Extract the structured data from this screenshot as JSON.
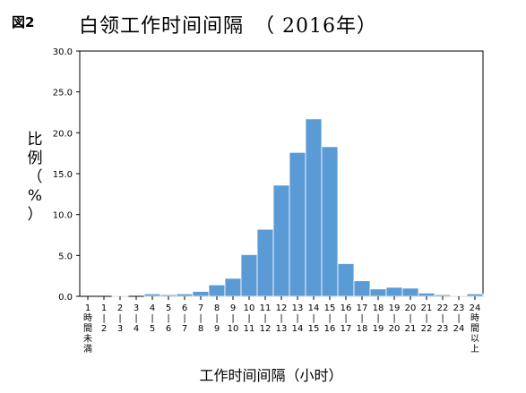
{
  "figure_label": "図2",
  "title": "白领工作时间间隔　（ 2016年）",
  "chart_data": {
    "type": "bar",
    "ylabel": [
      "比",
      "例",
      "（",
      "%",
      "）"
    ],
    "xlabel": "工作时间间隔（小时）",
    "ylim": [
      0,
      30
    ],
    "yticks": [
      "0.0",
      "5.0",
      "10.0",
      "15.0",
      "20.0",
      "25.0",
      "30.0"
    ],
    "categories": [
      [
        "1",
        "時",
        "間",
        "未",
        "満"
      ],
      [
        "1",
        "|",
        "2"
      ],
      [
        "2",
        "|",
        "3"
      ],
      [
        "3",
        "|",
        "4"
      ],
      [
        "4",
        "|",
        "5"
      ],
      [
        "5",
        "|",
        "6"
      ],
      [
        "6",
        "|",
        "7"
      ],
      [
        "7",
        "|",
        "8"
      ],
      [
        "8",
        "|",
        "9"
      ],
      [
        "9",
        "|",
        "10"
      ],
      [
        "10",
        "|",
        "11"
      ],
      [
        "11",
        "|",
        "12"
      ],
      [
        "12",
        "|",
        "13"
      ],
      [
        "13",
        "|",
        "14"
      ],
      [
        "14",
        "|",
        "15"
      ],
      [
        "15",
        "|",
        "16"
      ],
      [
        "16",
        "|",
        "17"
      ],
      [
        "17",
        "|",
        "18"
      ],
      [
        "18",
        "|",
        "19"
      ],
      [
        "19",
        "|",
        "20"
      ],
      [
        "20",
        "|",
        "21"
      ],
      [
        "21",
        "|",
        "22"
      ],
      [
        "22",
        "|",
        "23"
      ],
      [
        "23",
        "|",
        "24"
      ],
      [
        "24",
        "時",
        "間",
        "以",
        "上"
      ]
    ],
    "values": [
      0.0,
      0.0,
      0.1,
      0.0,
      0.3,
      0.2,
      0.3,
      0.6,
      1.4,
      2.2,
      5.1,
      8.2,
      13.6,
      17.6,
      21.7,
      18.3,
      4.0,
      1.9,
      0.9,
      1.1,
      1.0,
      0.4,
      0.2,
      0.1,
      0.3
    ],
    "bar_color": "#5b9bd5",
    "grid": false
  }
}
